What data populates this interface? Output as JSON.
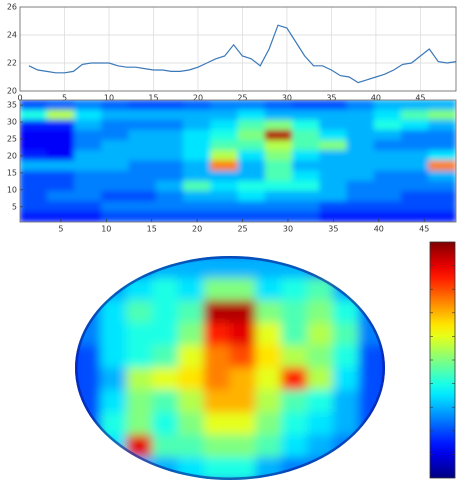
{
  "chart_data": [
    {
      "type": "line",
      "color": "#3a78b8",
      "grid": true,
      "x": [
        1,
        2,
        3,
        4,
        5,
        6,
        7,
        8,
        9,
        10,
        11,
        12,
        13,
        14,
        15,
        16,
        17,
        18,
        19,
        20,
        21,
        22,
        23,
        24,
        25,
        26,
        27,
        28,
        29,
        30,
        31,
        32,
        33,
        34,
        35,
        36,
        37,
        38,
        39,
        40,
        41,
        42,
        43,
        44,
        45,
        46,
        47,
        48,
        49
      ],
      "values": [
        21.8,
        21.5,
        21.4,
        21.3,
        21.3,
        21.4,
        21.9,
        22,
        22,
        22,
        21.8,
        21.7,
        21.7,
        21.6,
        21.5,
        21.5,
        21.4,
        21.4,
        21.5,
        21.7,
        22,
        22.3,
        22.5,
        23.3,
        22.5,
        22.3,
        21.8,
        23,
        24.7,
        24.5,
        23.5,
        22.5,
        21.8,
        21.8,
        21.5,
        21.1,
        21,
        20.6,
        20.8,
        21,
        21.2,
        21.5,
        21.9,
        22,
        22.5,
        23,
        22.1,
        22,
        22.1
      ],
      "xlim": [
        0,
        49
      ],
      "xticks": [
        0,
        5,
        10,
        15,
        20,
        25,
        30,
        35,
        40,
        45
      ],
      "ylim": [
        20,
        26
      ],
      "yticks": [
        20,
        22,
        24,
        26
      ]
    },
    {
      "type": "heatmap",
      "colormap": "jet",
      "clim": [
        0,
        1
      ],
      "xlim": [
        0.5,
        48.5
      ],
      "xticks": [
        5,
        10,
        15,
        20,
        25,
        30,
        35,
        40,
        45
      ],
      "ylim": [
        0.5,
        36.5
      ],
      "yticks": [
        5,
        10,
        15,
        20,
        25,
        30,
        35
      ],
      "values": [
        [
          0.2,
          0.22,
          0.25,
          0.22,
          0.2,
          0.2,
          0.22,
          0.25,
          0.25,
          0.22,
          0.2,
          0.2,
          0.25,
          0.3,
          0.3,
          0.3
        ],
        [
          0.4,
          0.55,
          0.35,
          0.3,
          0.3,
          0.3,
          0.3,
          0.3,
          0.35,
          0.3,
          0.3,
          0.3,
          0.3,
          0.35,
          0.45,
          0.5
        ],
        [
          0.15,
          0.15,
          0.3,
          0.25,
          0.25,
          0.25,
          0.3,
          0.35,
          0.45,
          0.5,
          0.4,
          0.3,
          0.3,
          0.4,
          0.35,
          0.3
        ],
        [
          0.12,
          0.12,
          0.25,
          0.25,
          0.3,
          0.3,
          0.35,
          0.4,
          0.5,
          0.95,
          0.45,
          0.35,
          0.3,
          0.3,
          0.25,
          0.25
        ],
        [
          0.12,
          0.12,
          0.25,
          0.3,
          0.3,
          0.3,
          0.35,
          0.45,
          0.45,
          0.55,
          0.45,
          0.5,
          0.3,
          0.25,
          0.25,
          0.25
        ],
        [
          0.15,
          0.12,
          0.3,
          0.3,
          0.3,
          0.3,
          0.35,
          0.55,
          0.35,
          0.5,
          0.35,
          0.3,
          0.3,
          0.3,
          0.3,
          0.35
        ],
        [
          0.3,
          0.3,
          0.3,
          0.3,
          0.25,
          0.25,
          0.3,
          0.75,
          0.3,
          0.45,
          0.3,
          0.3,
          0.3,
          0.3,
          0.3,
          0.75
        ],
        [
          0.2,
          0.2,
          0.25,
          0.25,
          0.25,
          0.25,
          0.3,
          0.3,
          0.3,
          0.45,
          0.35,
          0.3,
          0.3,
          0.25,
          0.25,
          0.3
        ],
        [
          0.2,
          0.2,
          0.25,
          0.25,
          0.25,
          0.3,
          0.45,
          0.35,
          0.4,
          0.4,
          0.4,
          0.3,
          0.25,
          0.25,
          0.25,
          0.25
        ],
        [
          0.2,
          0.25,
          0.25,
          0.2,
          0.2,
          0.25,
          0.3,
          0.3,
          0.35,
          0.3,
          0.3,
          0.3,
          0.25,
          0.25,
          0.2,
          0.2
        ],
        [
          0.2,
          0.2,
          0.2,
          0.25,
          0.25,
          0.25,
          0.25,
          0.25,
          0.25,
          0.25,
          0.25,
          0.2,
          0.2,
          0.2,
          0.2,
          0.2
        ],
        [
          0.15,
          0.15,
          0.15,
          0.2,
          0.2,
          0.2,
          0.2,
          0.2,
          0.2,
          0.2,
          0.2,
          0.15,
          0.15,
          0.15,
          0.15,
          0.15
        ]
      ]
    },
    {
      "type": "heatmap",
      "shape": "ellipse",
      "colormap": "jet",
      "clim": [
        0,
        1
      ],
      "colorbar": true,
      "values": [
        [
          0.15,
          0.2,
          0.25,
          0.3,
          0.3,
          0.3,
          0.3,
          0.3,
          0.3,
          0.25,
          0.2,
          0.15
        ],
        [
          0.2,
          0.3,
          0.35,
          0.4,
          0.35,
          0.5,
          0.5,
          0.35,
          0.4,
          0.45,
          0.3,
          0.2
        ],
        [
          0.25,
          0.35,
          0.45,
          0.4,
          0.45,
          0.95,
          0.95,
          0.5,
          0.45,
          0.5,
          0.4,
          0.25
        ],
        [
          0.25,
          0.35,
          0.4,
          0.4,
          0.5,
          0.85,
          0.9,
          0.6,
          0.45,
          0.55,
          0.45,
          0.25
        ],
        [
          0.2,
          0.35,
          0.4,
          0.45,
          0.6,
          0.75,
          0.8,
          0.65,
          0.55,
          0.5,
          0.4,
          0.2
        ],
        [
          0.2,
          0.3,
          0.55,
          0.6,
          0.65,
          0.75,
          0.7,
          0.6,
          0.85,
          0.55,
          0.35,
          0.2
        ],
        [
          0.2,
          0.35,
          0.5,
          0.45,
          0.55,
          0.7,
          0.7,
          0.55,
          0.45,
          0.4,
          0.3,
          0.2
        ],
        [
          0.2,
          0.4,
          0.5,
          0.4,
          0.5,
          0.6,
          0.6,
          0.5,
          0.4,
          0.35,
          0.3,
          0.2
        ],
        [
          0.2,
          0.35,
          0.9,
          0.45,
          0.45,
          0.5,
          0.5,
          0.45,
          0.35,
          0.3,
          0.25,
          0.2
        ],
        [
          0.15,
          0.25,
          0.3,
          0.3,
          0.35,
          0.4,
          0.4,
          0.3,
          0.25,
          0.25,
          0.2,
          0.15
        ]
      ]
    }
  ]
}
